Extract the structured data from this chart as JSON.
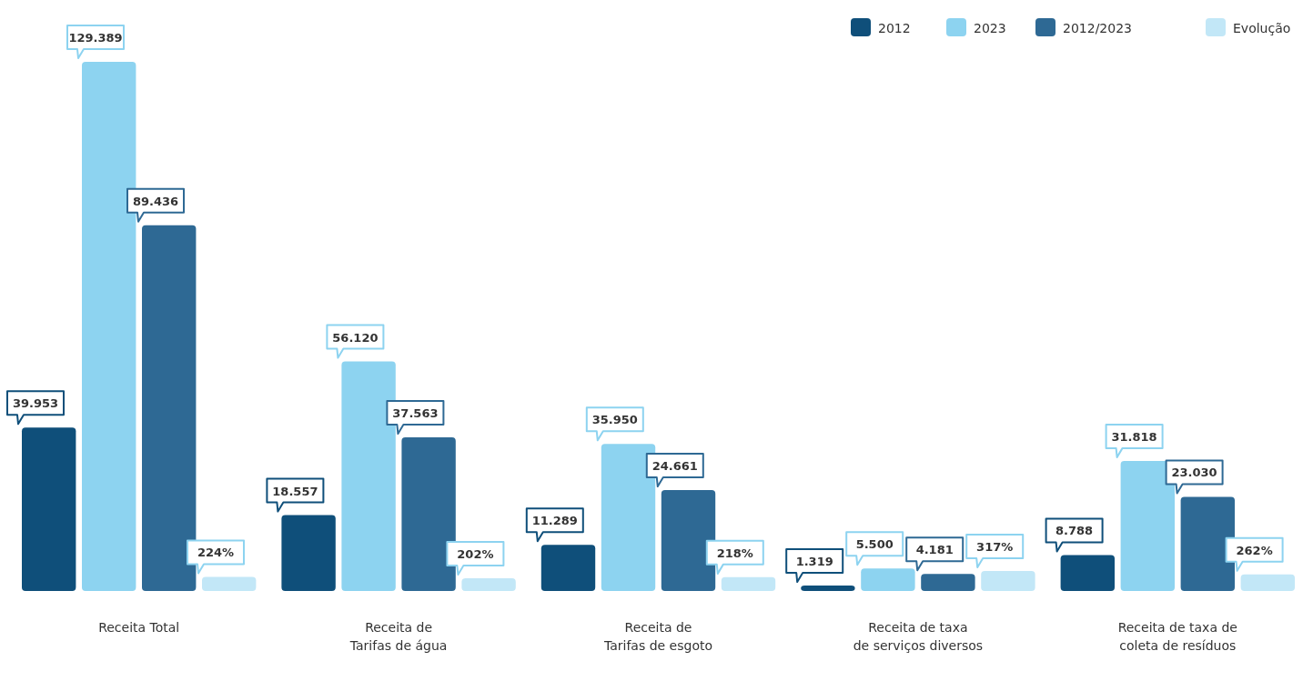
{
  "chart_data": {
    "type": "bar",
    "categories": [
      "Receita Total",
      "Receita de\nTarifas de água",
      "Receita de\nTarifas de esgoto",
      "Receita de taxa\nde serviços diversos",
      "Receita de taxa de\ncoleta de resíduos"
    ],
    "series": [
      {
        "name": "2012",
        "color": "#0f4f7a",
        "values": [
          39953,
          18557,
          11289,
          1319,
          8788
        ],
        "value_labels": [
          "39.953",
          "18.557",
          "11.289",
          "1.319",
          "8.788"
        ]
      },
      {
        "name": "2023",
        "color": "#8dd3f0",
        "values": [
          129389,
          56120,
          35950,
          5500,
          31818
        ],
        "value_labels": [
          "129.389",
          "56.120",
          "35.950",
          "5.500",
          "31.818"
        ]
      },
      {
        "name": "2012/2023",
        "color": "#2e6994",
        "values": [
          89436,
          37563,
          24661,
          4181,
          23030
        ],
        "value_labels": [
          "89.436",
          "37.563",
          "24.661",
          "4.181",
          "23.030"
        ]
      },
      {
        "name": "Evolução",
        "color": "#c2e7f7",
        "axis": "y2",
        "values": [
          224,
          202,
          218,
          317,
          262
        ],
        "value_labels": [
          "224%",
          "202%",
          "218%",
          "317%",
          "262%"
        ]
      }
    ],
    "legend": "top right"
  }
}
